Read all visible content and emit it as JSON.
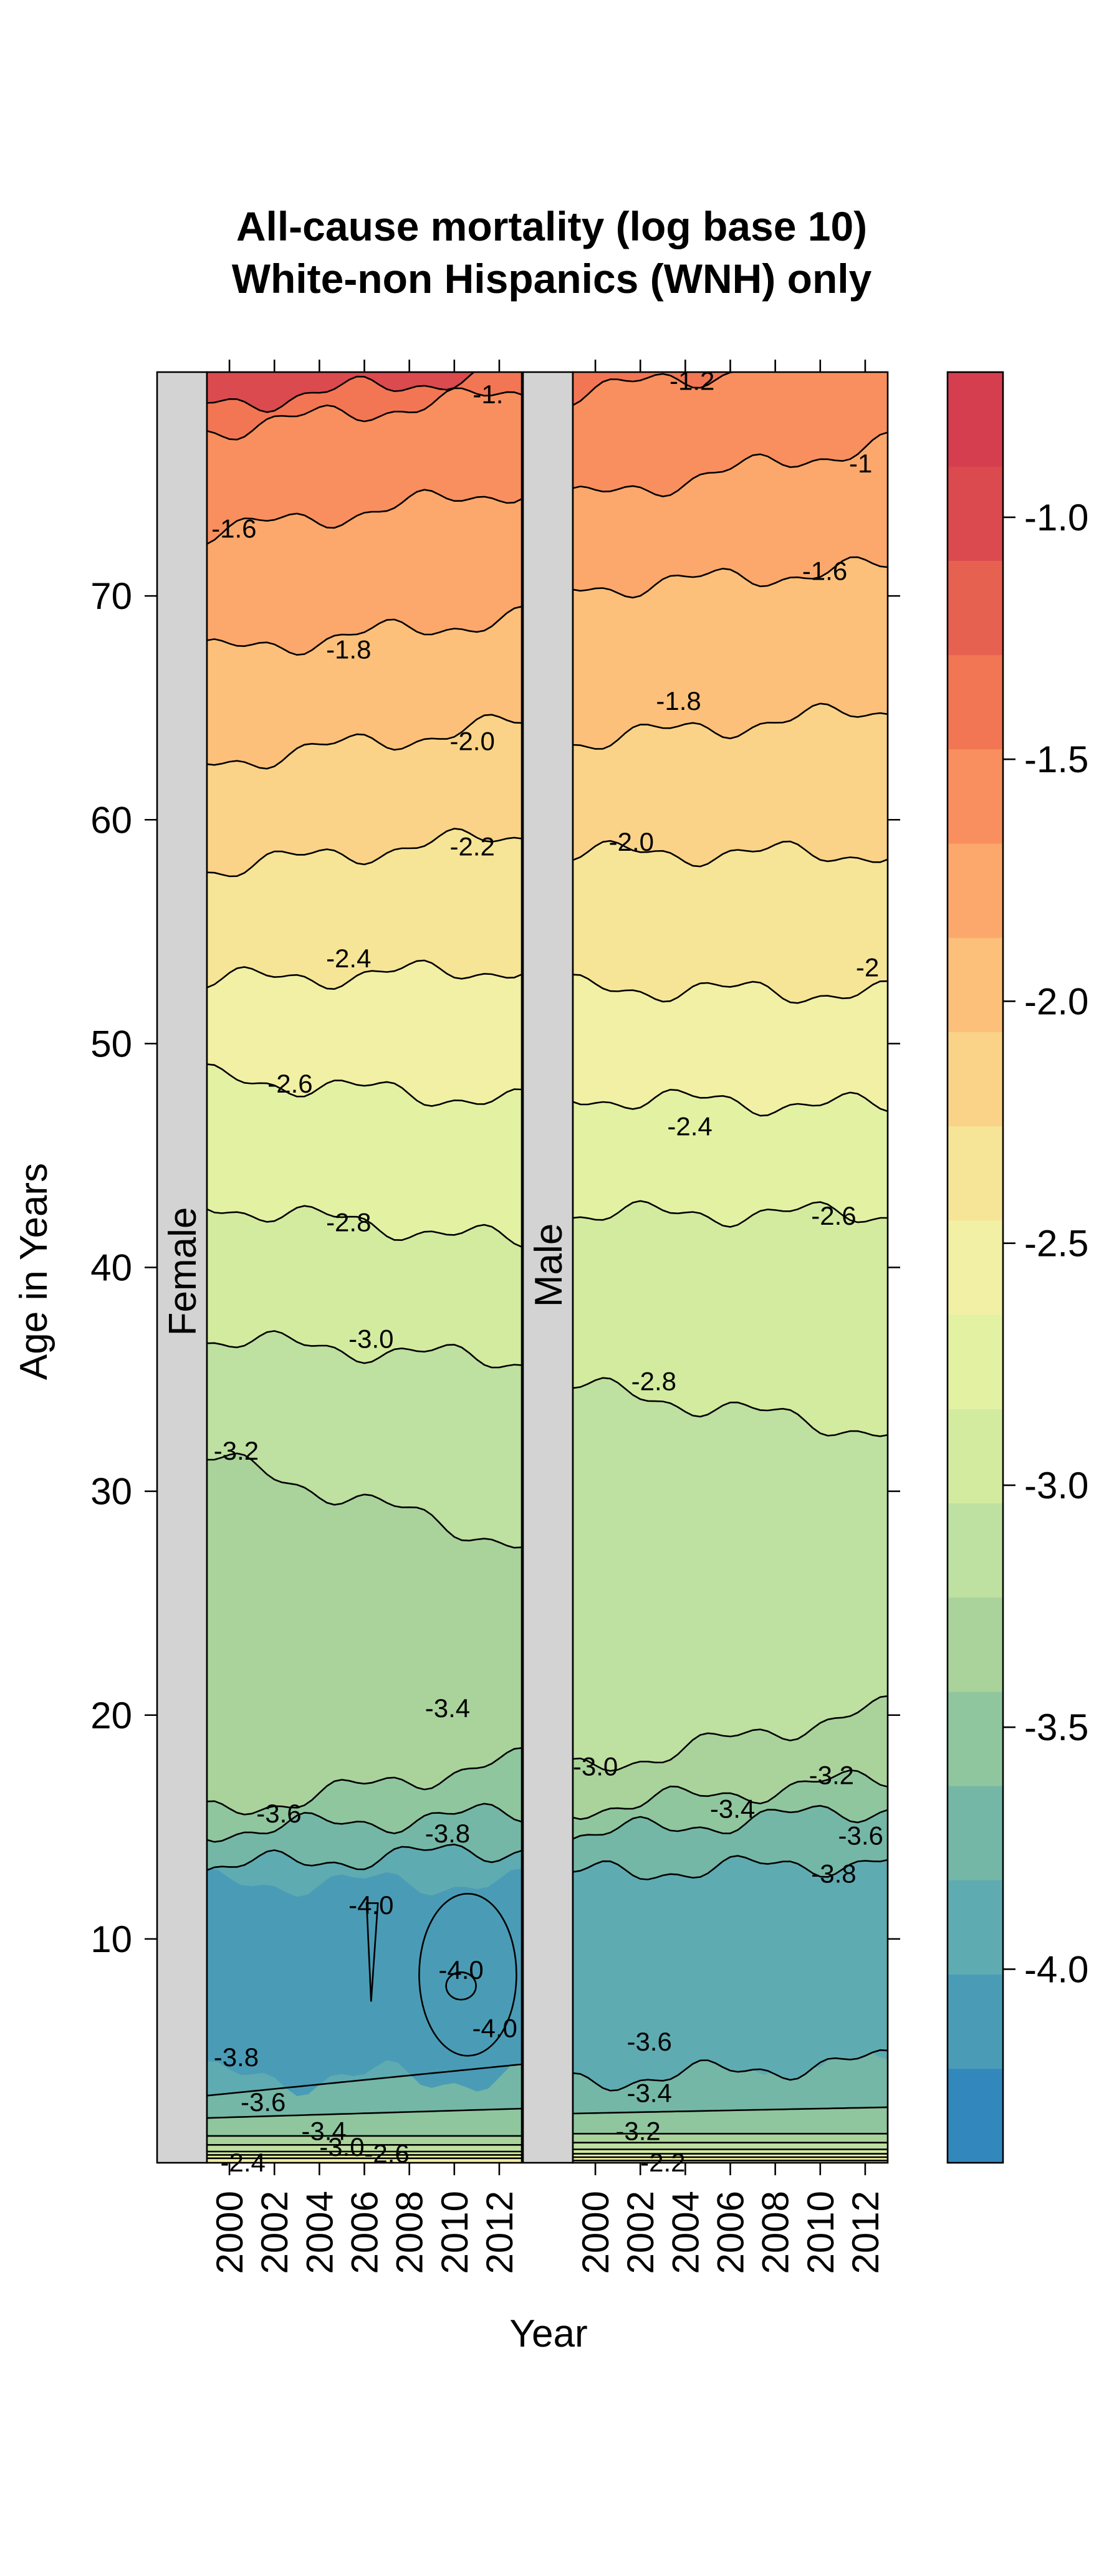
{
  "chart_data": {
    "type": "heatmap",
    "title_lines": [
      "All-cause mortality (log base 10)",
      "White-non Hispanics (WNH) only"
    ],
    "xlabel": "Year",
    "ylabel": "Age in Years",
    "xlim": [
      1999,
      2013
    ],
    "ylim": [
      0,
      80
    ],
    "x_ticks": [
      2000,
      2002,
      2004,
      2006,
      2008,
      2010,
      2012
    ],
    "y_ticks": [
      10,
      20,
      30,
      40,
      50,
      60,
      70
    ],
    "color_scale": {
      "min": -4.4,
      "max": -0.7,
      "step": 0.2,
      "ticks": [
        "-1.0",
        "-1.5",
        "-2.0",
        "-2.5",
        "-3.0",
        "-3.5",
        "-4.0"
      ],
      "tick_values": [
        -1.0,
        -1.5,
        -2.0,
        -2.5,
        -3.0,
        -3.5,
        -4.0
      ],
      "colors": [
        "#3288bd",
        "#4a9cb6",
        "#5fabb2",
        "#74b7a6",
        "#8fc69e",
        "#a9d39b",
        "#bee0a0",
        "#d3eb9f",
        "#e3f1a3",
        "#f1f0a4",
        "#f6e597",
        "#fad388",
        "#fcc07a",
        "#fca86c",
        "#f98f5e",
        "#f27654",
        "#e76150",
        "#db4a4e",
        "#d53e4f"
      ]
    },
    "panels": [
      {
        "strip": "Female",
        "levels": [
          {
            "value": -1.2,
            "age": 78.5,
            "slope": 0.11
          },
          {
            "value": -1.4,
            "age": 77.4,
            "slope": 0.12
          },
          {
            "value": -1.6,
            "age": 72.8,
            "slope": 0.14
          },
          {
            "value": -1.8,
            "age": 67.5,
            "slope": 0.11
          },
          {
            "value": -2.0,
            "age": 62.5,
            "slope": 0.13
          },
          {
            "value": -2.2,
            "age": 57.8,
            "slope": 0.11
          },
          {
            "value": -2.4,
            "age": 52.8,
            "slope": 0.04
          },
          {
            "value": -2.6,
            "age": 48.5,
            "slope": -0.08
          },
          {
            "value": -2.8,
            "age": 42.8,
            "slope": -0.12
          },
          {
            "value": -3.0,
            "age": 36.8,
            "slope": -0.07
          },
          {
            "value": -3.2,
            "age": 31.5,
            "slope": -0.28
          },
          {
            "value": -3.4,
            "age": 15.6,
            "slope": 0.17
          },
          {
            "value": -3.6,
            "age": 14.8,
            "slope": 0.06
          },
          {
            "value": -3.8,
            "age": 13.2,
            "slope": 0.06
          },
          {
            "value": -3.6,
            "age": 3.0,
            "slope": 0.1
          },
          {
            "value": -3.4,
            "age": 2.0,
            "slope": 0.03
          },
          {
            "value": -3.2,
            "age": 1.2,
            "slope": 0.0
          },
          {
            "value": -3.0,
            "age": 0.8,
            "slope": 0.0
          },
          {
            "value": -2.8,
            "age": 0.5,
            "slope": 0.0
          },
          {
            "value": -2.6,
            "age": 0.35,
            "slope": 0.0
          },
          {
            "value": -2.4,
            "age": 0.2,
            "slope": 0.0
          }
        ],
        "labels": [
          {
            "text": "-1.",
            "year": 2011.5,
            "age": 79.0
          },
          {
            "text": "-1.6",
            "year": 2000.2,
            "age": 73.0
          },
          {
            "text": "-1.8",
            "year": 2005.3,
            "age": 67.6
          },
          {
            "text": "-2.0",
            "year": 2010.8,
            "age": 63.5
          },
          {
            "text": "-2.2",
            "year": 2010.8,
            "age": 58.8
          },
          {
            "text": "-2.4",
            "year": 2005.3,
            "age": 53.8
          },
          {
            "text": "-2.6",
            "year": 2002.7,
            "age": 48.2
          },
          {
            "text": "-2.8",
            "year": 2005.3,
            "age": 42.0
          },
          {
            "text": "-3.0",
            "year": 2006.3,
            "age": 36.8
          },
          {
            "text": "-3.2",
            "year": 2000.3,
            "age": 31.8
          },
          {
            "text": "-3.4",
            "year": 2009.7,
            "age": 20.3
          },
          {
            "text": "-3.6",
            "year": 2002.2,
            "age": 15.6
          },
          {
            "text": "-3.8",
            "year": 2009.7,
            "age": 14.7
          },
          {
            "text": "-4.0",
            "year": 2006.3,
            "age": 11.5
          },
          {
            "text": "-4.0",
            "year": 2010.3,
            "age": 8.6
          },
          {
            "text": "-4.0",
            "year": 2011.8,
            "age": 6.0
          },
          {
            "text": "-3.8",
            "year": 2000.3,
            "age": 4.7
          },
          {
            "text": "-3.6",
            "year": 2001.5,
            "age": 2.7
          },
          {
            "text": "-3.4",
            "year": 2004.2,
            "age": 1.4
          },
          {
            "text": "-3.0",
            "year": 2005.0,
            "age": 0.7
          },
          {
            "text": "-2.6",
            "year": 2007.0,
            "age": 0.4
          },
          {
            "text": "-2.4",
            "year": 2000.6,
            "age": 0.0
          }
        ]
      },
      {
        "strip": "Male",
        "levels": [
          {
            "value": -1.2,
            "age": 80.5,
            "slope": 0.1
          },
          {
            "value": -1.4,
            "age": 79.0,
            "slope": 0.15
          },
          {
            "value": -1.6,
            "age": 74.3,
            "slope": 0.18
          },
          {
            "value": -1.8,
            "age": 70.3,
            "slope": 0.07
          },
          {
            "value": -2.0,
            "age": 63.5,
            "slope": 0.1
          },
          {
            "value": -2.2,
            "age": 58.5,
            "slope": 0.0
          },
          {
            "value": -2.4,
            "age": 52.5,
            "slope": -0.02
          },
          {
            "value": -2.6,
            "age": 47.6,
            "slope": -0.03
          },
          {
            "value": -2.8,
            "age": 42.4,
            "slope": 0.0
          },
          {
            "value": -3.0,
            "age": 34.7,
            "slope": -0.15
          },
          {
            "value": -3.2,
            "age": 17.5,
            "slope": 0.2
          },
          {
            "value": -3.4,
            "age": 15.8,
            "slope": 0.1
          },
          {
            "value": -3.6,
            "age": 14.6,
            "slope": 0.09
          },
          {
            "value": -3.8,
            "age": 12.9,
            "slope": 0.04
          },
          {
            "value": -3.6,
            "age": 3.6,
            "slope": 0.07
          },
          {
            "value": -3.4,
            "age": 2.2,
            "slope": 0.02
          },
          {
            "value": -3.2,
            "age": 1.3,
            "slope": 0.0
          },
          {
            "value": -3.0,
            "age": 0.9,
            "slope": 0.0
          },
          {
            "value": -2.8,
            "age": 0.6,
            "slope": 0.0
          },
          {
            "value": -2.6,
            "age": 0.4,
            "slope": 0.0
          },
          {
            "value": -2.4,
            "age": 0.25,
            "slope": 0.0
          },
          {
            "value": -2.2,
            "age": 0.1,
            "slope": 0.0
          }
        ],
        "labels": [
          {
            "text": "-1.2",
            "year": 2004.3,
            "age": 79.6
          },
          {
            "text": "-1",
            "year": 2011.8,
            "age": 75.9
          },
          {
            "text": "-1.6",
            "year": 2010.2,
            "age": 71.1
          },
          {
            "text": "-1.8",
            "year": 2003.7,
            "age": 65.3
          },
          {
            "text": "-2.0",
            "year": 2001.6,
            "age": 59.0
          },
          {
            "text": "-2",
            "year": 2012.1,
            "age": 53.4
          },
          {
            "text": "-2.4",
            "year": 2004.2,
            "age": 46.3
          },
          {
            "text": "-2.6",
            "year": 2010.6,
            "age": 42.3
          },
          {
            "text": "-2.8",
            "year": 2002.6,
            "age": 34.9
          },
          {
            "text": "-3.0",
            "year": 2000.0,
            "age": 17.7
          },
          {
            "text": "-3.2",
            "year": 2010.5,
            "age": 17.3
          },
          {
            "text": "-3.4",
            "year": 2006.1,
            "age": 15.8
          },
          {
            "text": "-3.6",
            "year": 2011.8,
            "age": 14.6
          },
          {
            "text": "-3.8",
            "year": 2010.6,
            "age": 12.9
          },
          {
            "text": "-3.6",
            "year": 2002.4,
            "age": 5.4
          },
          {
            "text": "-3.4",
            "year": 2002.4,
            "age": 3.1
          },
          {
            "text": "-3.2",
            "year": 2001.9,
            "age": 1.4
          },
          {
            "text": "-2.2",
            "year": 2003.0,
            "age": 0.0
          }
        ]
      }
    ]
  }
}
